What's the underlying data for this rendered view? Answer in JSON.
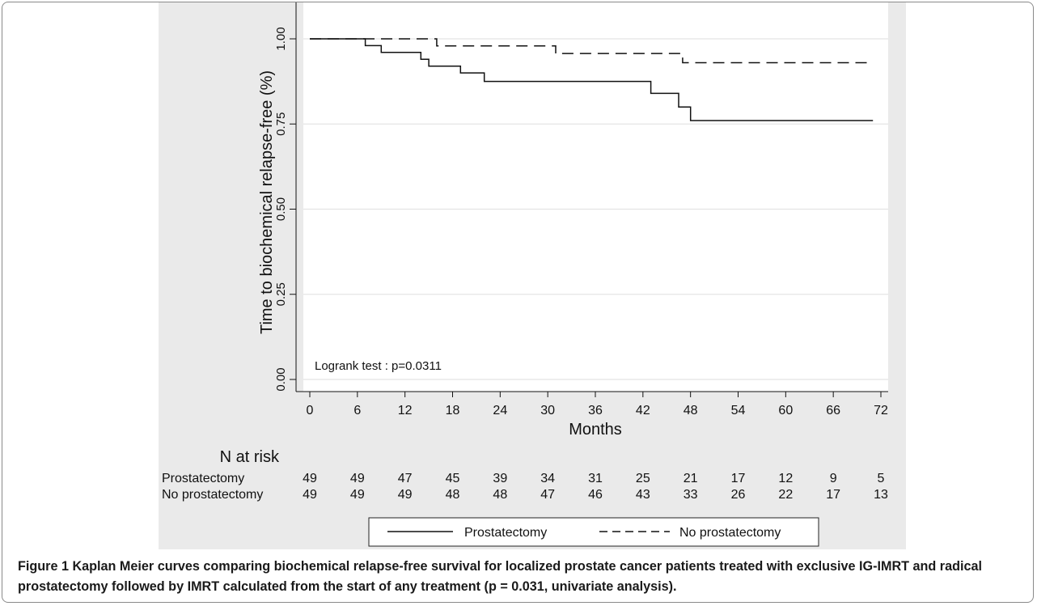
{
  "chart_data": {
    "type": "line",
    "subtype": "kaplan-meier step curves",
    "xlabel": "Months",
    "ylabel": "Time to biochemical relapse-free (%)",
    "xlim": [
      0,
      72
    ],
    "ylim": [
      0,
      1
    ],
    "x_ticks": [
      "0",
      "6",
      "12",
      "18",
      "24",
      "30",
      "36",
      "42",
      "48",
      "54",
      "60",
      "66",
      "72"
    ],
    "y_ticks": [
      "0.00",
      "0.25",
      "0.50",
      "0.75",
      "1.00"
    ],
    "grid": "horizontal",
    "annotation": "Logrank test : p=0.0311",
    "legend_position": "bottom",
    "series": [
      {
        "name": "Prostatectomy",
        "style": "solid",
        "points": [
          [
            0,
            1.0
          ],
          [
            7,
            1.0
          ],
          [
            7,
            0.98
          ],
          [
            9,
            0.98
          ],
          [
            9,
            0.96
          ],
          [
            14,
            0.96
          ],
          [
            14,
            0.94
          ],
          [
            15,
            0.94
          ],
          [
            15,
            0.92
          ],
          [
            19,
            0.92
          ],
          [
            19,
            0.9
          ],
          [
            22,
            0.9
          ],
          [
            22,
            0.875
          ],
          [
            43,
            0.875
          ],
          [
            43,
            0.84
          ],
          [
            46.5,
            0.84
          ],
          [
            46.5,
            0.8
          ],
          [
            48,
            0.8
          ],
          [
            48,
            0.76
          ],
          [
            71,
            0.76
          ]
        ]
      },
      {
        "name": "No prostatectomy",
        "style": "dashed",
        "points": [
          [
            0,
            1.0
          ],
          [
            16,
            1.0
          ],
          [
            16,
            0.979
          ],
          [
            31,
            0.979
          ],
          [
            31,
            0.957
          ],
          [
            47,
            0.957
          ],
          [
            47,
            0.93
          ],
          [
            71,
            0.93
          ]
        ]
      }
    ],
    "risk_table": {
      "title": "N at risk",
      "rows": [
        {
          "label": "Prostatectomy",
          "values": [
            "49",
            "49",
            "47",
            "45",
            "39",
            "34",
            "31",
            "25",
            "21",
            "17",
            "12",
            "9",
            "5"
          ]
        },
        {
          "label": "No prostatectomy",
          "values": [
            "49",
            "49",
            "49",
            "48",
            "48",
            "47",
            "46",
            "43",
            "33",
            "26",
            "22",
            "17",
            "13"
          ]
        }
      ]
    }
  },
  "caption": {
    "label": "Figure 1",
    "text": "Kaplan Meier curves comparing biochemical relapse-free survival for localized prostate cancer patients treated with exclusive IG-IMRT and radical prostatectomy followed by IMRT calculated from the start of any treatment (p = 0.031, univariate analysis)."
  }
}
